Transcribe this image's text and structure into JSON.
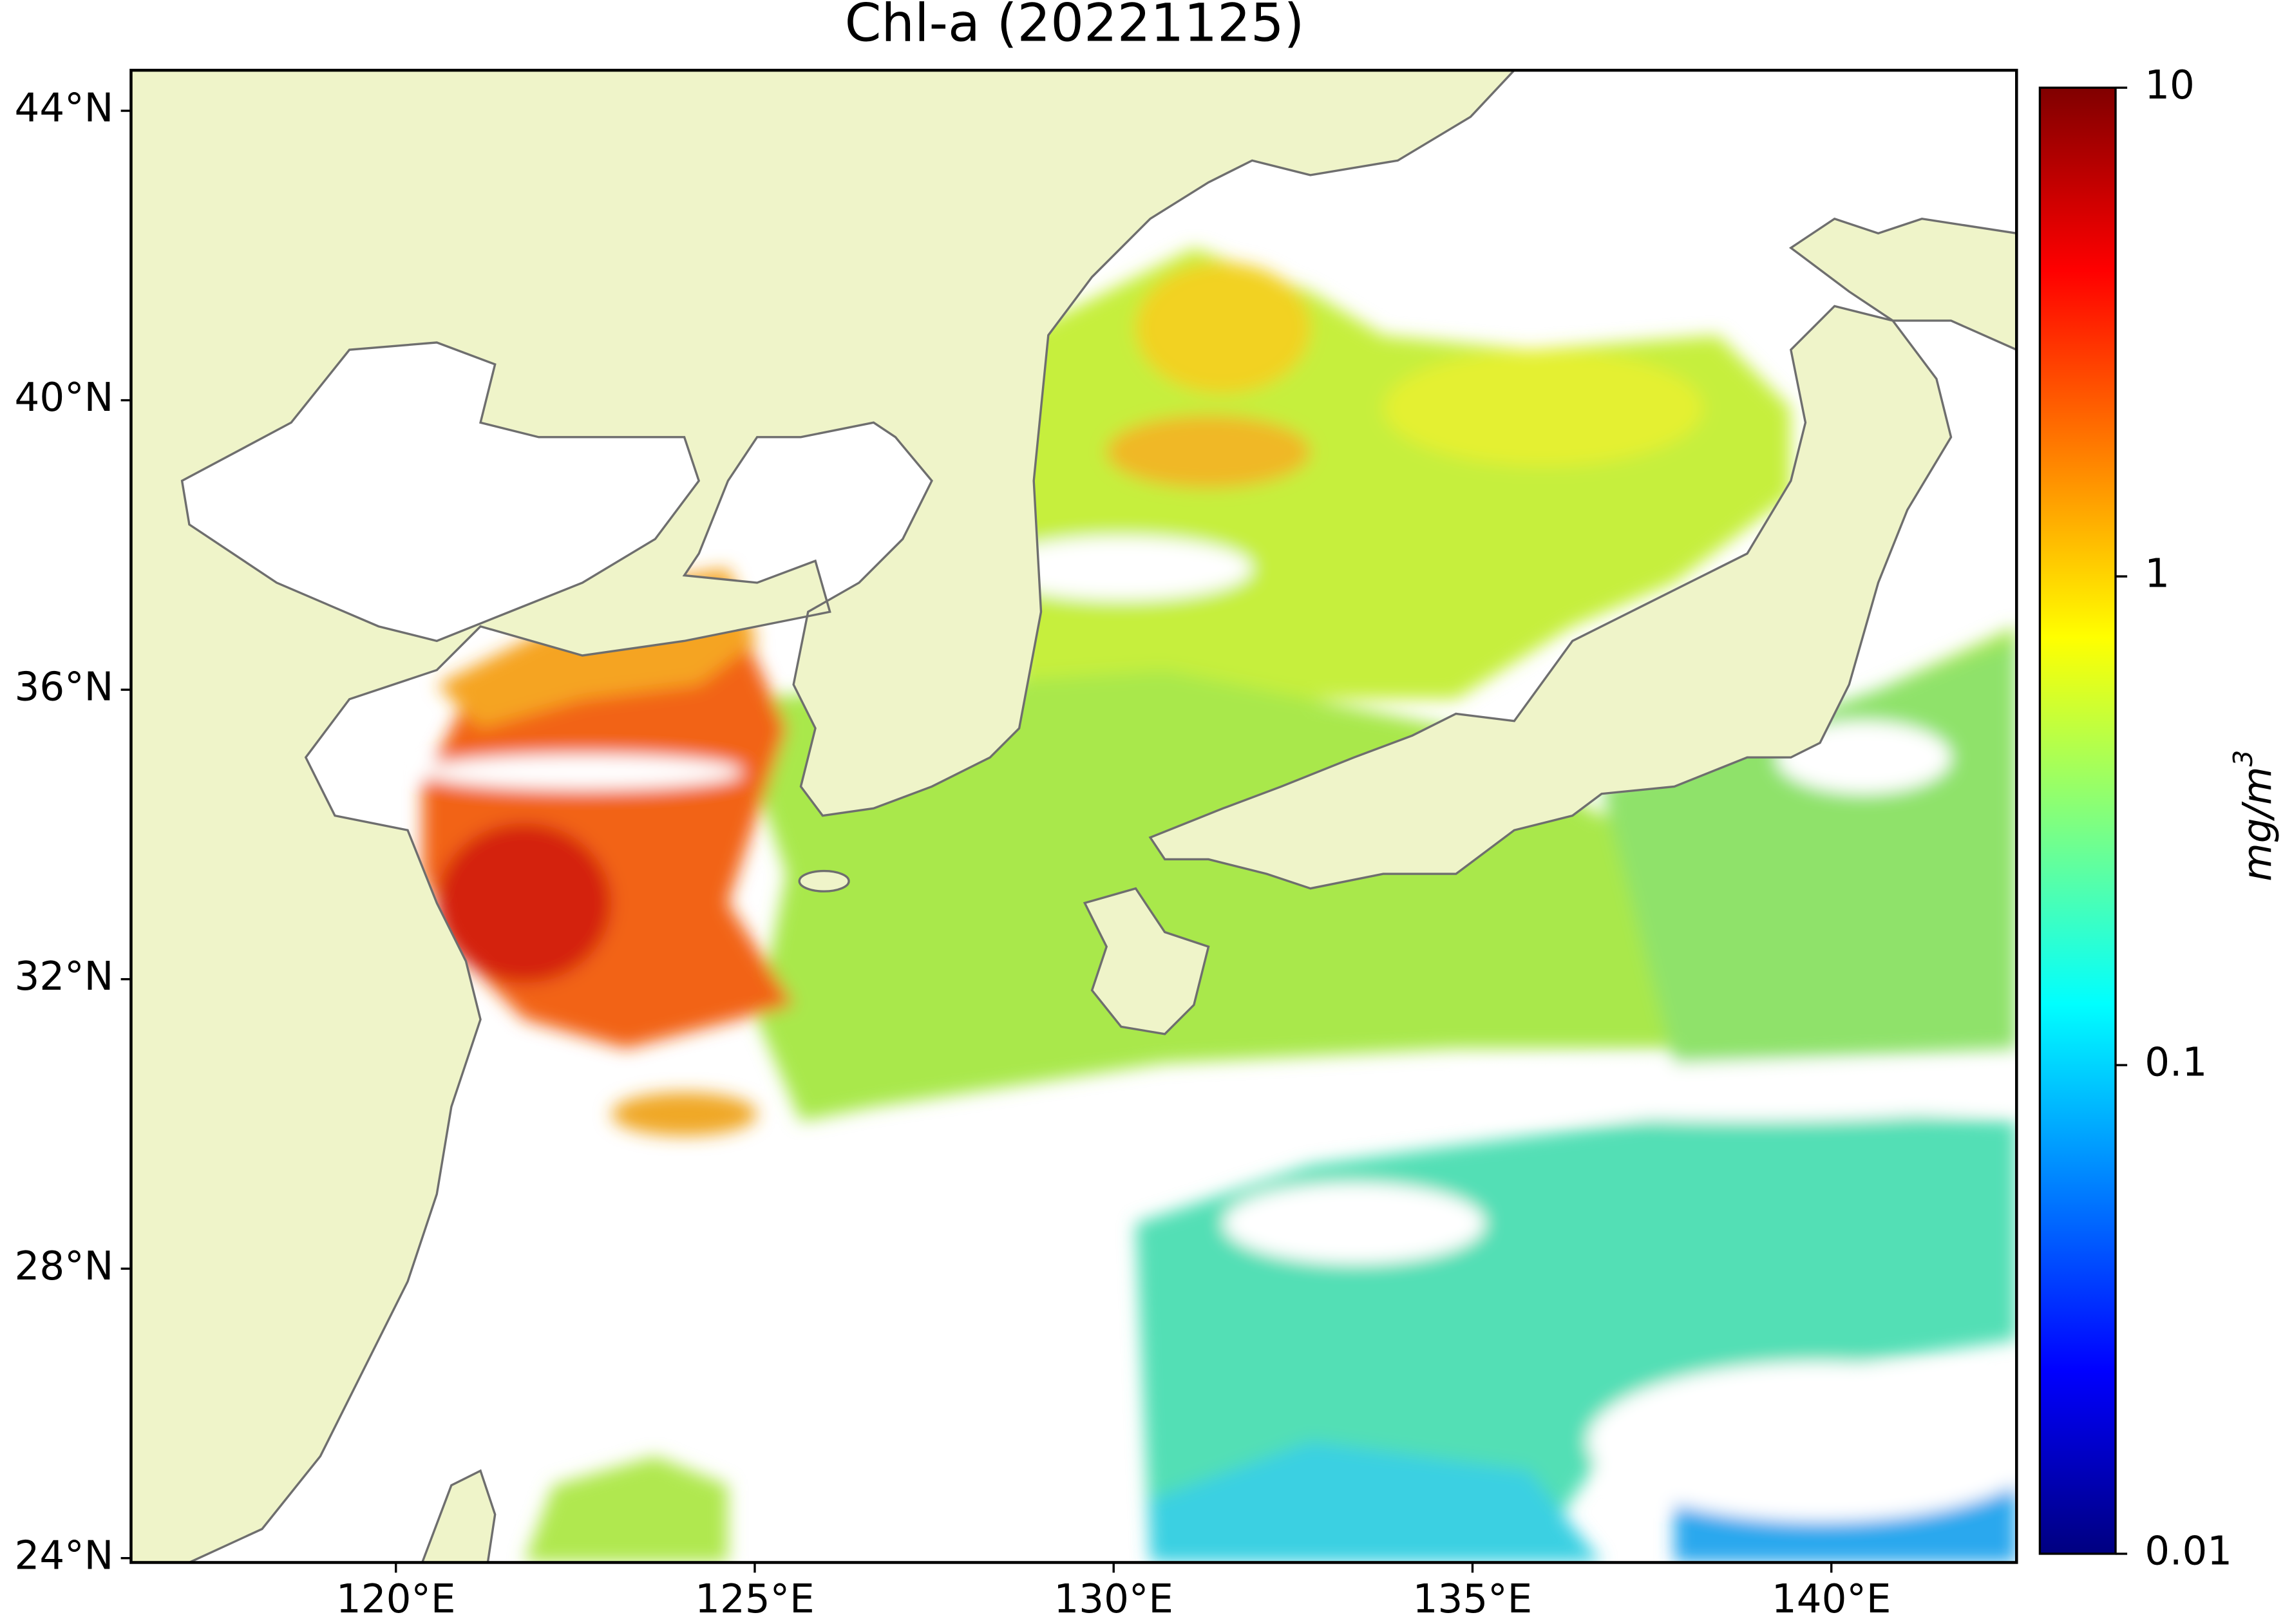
{
  "title": "Chl-a (20221125)",
  "map": {
    "xlim": [
      116.31,
      142.58
    ],
    "ylim": [
      23.94,
      44.56
    ],
    "xticks": [
      {
        "value": 120,
        "label": "120°E"
      },
      {
        "value": 125,
        "label": "125°E"
      },
      {
        "value": 130,
        "label": "130°E"
      },
      {
        "value": 135,
        "label": "135°E"
      },
      {
        "value": 140,
        "label": "140°E"
      }
    ],
    "yticks": [
      {
        "value": 24,
        "label": "24°N"
      },
      {
        "value": 28,
        "label": "28°N"
      },
      {
        "value": 32,
        "label": "32°N"
      },
      {
        "value": 36,
        "label": "36°N"
      },
      {
        "value": 40,
        "label": "40°N"
      },
      {
        "value": 44,
        "label": "44°N"
      }
    ]
  },
  "colorbar": {
    "scale": "log",
    "lim": [
      0.01,
      10
    ],
    "ticks": [
      0.01,
      0.1,
      1,
      10
    ],
    "label": "mg/m",
    "label_superscript": "3"
  }
}
